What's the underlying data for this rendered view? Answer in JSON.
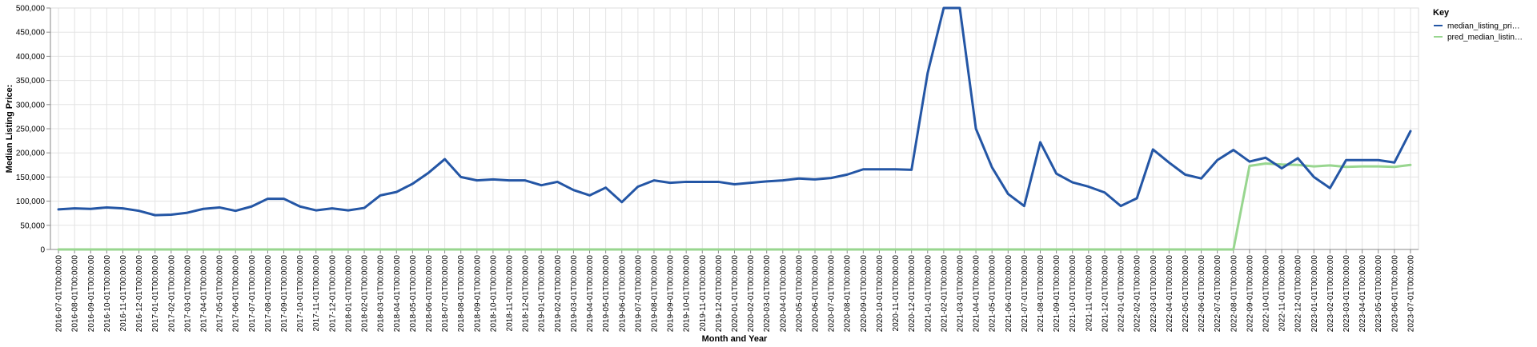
{
  "chart_data": {
    "type": "line",
    "xlabel": "Month and Year",
    "ylabel": "Median Listing Price:",
    "ylim": [
      0,
      500000
    ],
    "y_ticks": [
      "0",
      "50,000",
      "100,000",
      "150,000",
      "200,000",
      "250,000",
      "300,000",
      "350,000",
      "400,000",
      "450,000",
      "500,000"
    ],
    "grid": true,
    "legend": {
      "title": "Key",
      "placement": "top-right"
    },
    "x": [
      "2016-07-01T00:00:00",
      "2016-08-01T00:00:00",
      "2016-09-01T00:00:00",
      "2016-10-01T00:00:00",
      "2016-11-01T00:00:00",
      "2016-12-01T00:00:00",
      "2017-01-01T00:00:00",
      "2017-02-01T00:00:00",
      "2017-03-01T00:00:00",
      "2017-04-01T00:00:00",
      "2017-05-01T00:00:00",
      "2017-06-01T00:00:00",
      "2017-07-01T00:00:00",
      "2017-08-01T00:00:00",
      "2017-09-01T00:00:00",
      "2017-10-01T00:00:00",
      "2017-11-01T00:00:00",
      "2017-12-01T00:00:00",
      "2018-01-01T00:00:00",
      "2018-02-01T00:00:00",
      "2018-03-01T00:00:00",
      "2018-04-01T00:00:00",
      "2018-05-01T00:00:00",
      "2018-06-01T00:00:00",
      "2018-07-01T00:00:00",
      "2018-08-01T00:00:00",
      "2018-09-01T00:00:00",
      "2018-10-01T00:00:00",
      "2018-11-01T00:00:00",
      "2018-12-01T00:00:00",
      "2019-01-01T00:00:00",
      "2019-02-01T00:00:00",
      "2019-03-01T00:00:00",
      "2019-04-01T00:00:00",
      "2019-05-01T00:00:00",
      "2019-06-01T00:00:00",
      "2019-07-01T00:00:00",
      "2019-08-01T00:00:00",
      "2019-09-01T00:00:00",
      "2019-10-01T00:00:00",
      "2019-11-01T00:00:00",
      "2019-12-01T00:00:00",
      "2020-01-01T00:00:00",
      "2020-02-01T00:00:00",
      "2020-03-01T00:00:00",
      "2020-04-01T00:00:00",
      "2020-05-01T00:00:00",
      "2020-06-01T00:00:00",
      "2020-07-01T00:00:00",
      "2020-08-01T00:00:00",
      "2020-09-01T00:00:00",
      "2020-10-01T00:00:00",
      "2020-11-01T00:00:00",
      "2020-12-01T00:00:00",
      "2021-01-01T00:00:00",
      "2021-02-01T00:00:00",
      "2021-03-01T00:00:00",
      "2021-04-01T00:00:00",
      "2021-05-01T00:00:00",
      "2021-06-01T00:00:00",
      "2021-07-01T00:00:00",
      "2021-08-01T00:00:00",
      "2021-09-01T00:00:00",
      "2021-10-01T00:00:00",
      "2021-11-01T00:00:00",
      "2021-12-01T00:00:00",
      "2022-01-01T00:00:00",
      "2022-02-01T00:00:00",
      "2022-03-01T00:00:00",
      "2022-04-01T00:00:00",
      "2022-05-01T00:00:00",
      "2022-06-01T00:00:00",
      "2022-07-01T00:00:00",
      "2022-08-01T00:00:00",
      "2022-09-01T00:00:00",
      "2022-10-01T00:00:00",
      "2022-11-01T00:00:00",
      "2022-12-01T00:00:00",
      "2023-01-01T00:00:00",
      "2023-02-01T00:00:00",
      "2023-03-01T00:00:00",
      "2023-04-01T00:00:00",
      "2023-05-01T00:00:00",
      "2023-06-01T00:00:00",
      "2023-07-01T00:00:00"
    ],
    "series": [
      {
        "name": "median_listing_pri…",
        "color": "#2456a5",
        "values": [
          83000,
          85000,
          84000,
          87000,
          85000,
          80000,
          71000,
          72000,
          76000,
          84000,
          87000,
          80000,
          89000,
          105000,
          105000,
          89000,
          81000,
          85000,
          81000,
          86000,
          112000,
          119000,
          136000,
          159000,
          187000,
          150000,
          143000,
          145000,
          143000,
          143000,
          133000,
          140000,
          123000,
          112000,
          128000,
          98000,
          130000,
          143000,
          138000,
          140000,
          140000,
          140000,
          135000,
          138000,
          141000,
          143000,
          147000,
          145000,
          148000,
          155000,
          166000,
          166000,
          166000,
          165000,
          365000,
          500000,
          500000,
          250000,
          170000,
          115000,
          90000,
          222000,
          157000,
          139000,
          130000,
          118000,
          90000,
          106000,
          207000,
          180000,
          155000,
          147000,
          185000,
          206000,
          182000,
          190000,
          168000,
          189000,
          150000,
          127000,
          185000,
          185000,
          185000,
          180000,
          245000
        ]
      },
      {
        "name": "pred_median_listin…",
        "color": "#98d68f",
        "values": [
          0,
          0,
          0,
          0,
          0,
          0,
          0,
          0,
          0,
          0,
          0,
          0,
          0,
          0,
          0,
          0,
          0,
          0,
          0,
          0,
          0,
          0,
          0,
          0,
          0,
          0,
          0,
          0,
          0,
          0,
          0,
          0,
          0,
          0,
          0,
          0,
          0,
          0,
          0,
          0,
          0,
          0,
          0,
          0,
          0,
          0,
          0,
          0,
          0,
          0,
          0,
          0,
          0,
          0,
          0,
          0,
          0,
          0,
          0,
          0,
          0,
          0,
          0,
          0,
          0,
          0,
          0,
          0,
          0,
          0,
          0,
          0,
          0,
          0,
          173000,
          178000,
          176000,
          175000,
          172000,
          174000,
          171000,
          172000,
          172000,
          171000,
          175000
        ]
      }
    ]
  }
}
